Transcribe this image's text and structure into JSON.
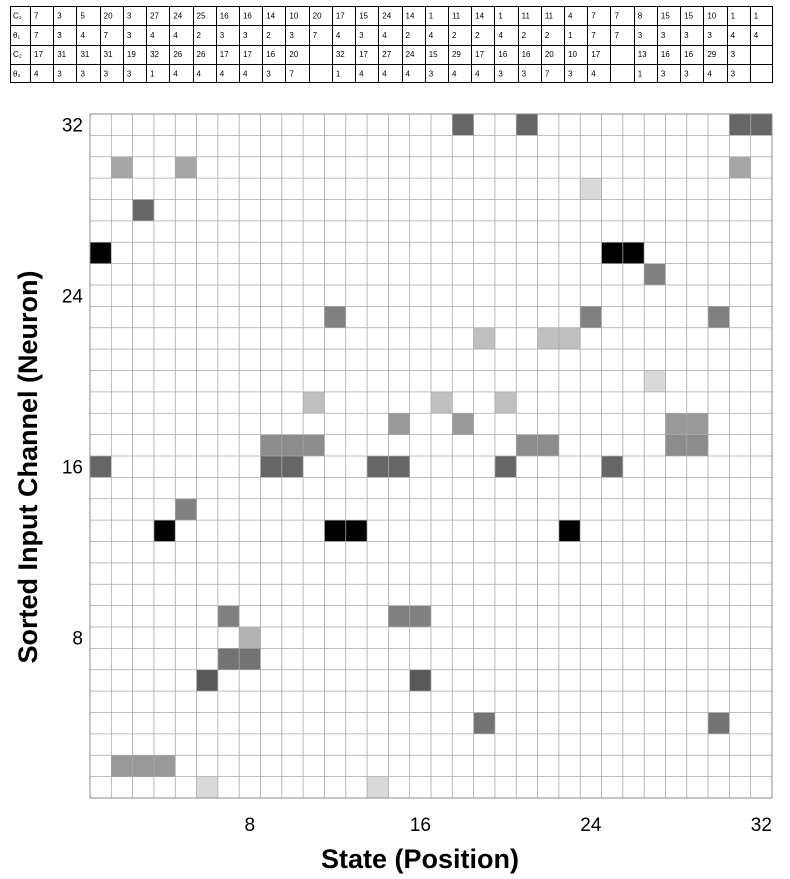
{
  "parameter_table": {
    "rows": [
      {
        "label": "C₁",
        "values": [
          "7",
          "3",
          "5",
          "20",
          "3",
          "27",
          "24",
          "25",
          "16",
          "16",
          "14",
          "10",
          "20",
          "17",
          "15",
          "24",
          "14",
          "1",
          "11",
          "14",
          "1",
          "11",
          "11",
          "4",
          "7",
          "7",
          "8",
          "15",
          "15",
          "10",
          "1",
          "1"
        ]
      },
      {
        "label": "θ₁",
        "values": [
          "7",
          "3",
          "4",
          "7",
          "3",
          "4",
          "4",
          "2",
          "3",
          "3",
          "2",
          "3",
          "7",
          "4",
          "3",
          "4",
          "2",
          "4",
          "2",
          "2",
          "4",
          "2",
          "2",
          "1",
          "7",
          "7",
          "3",
          "3",
          "3",
          "3",
          "4",
          "4"
        ]
      },
      {
        "label": "C₂",
        "values": [
          "17",
          "31",
          "31",
          "31",
          "19",
          "32",
          "26",
          "26",
          "17",
          "17",
          "16",
          "20",
          "",
          "32",
          "17",
          "27",
          "24",
          "15",
          "29",
          "17",
          "16",
          "16",
          "20",
          "10",
          "17",
          "",
          "13",
          "16",
          "16",
          "29",
          "3",
          ""
        ]
      },
      {
        "label": "θ₂",
        "values": [
          "4",
          "3",
          "3",
          "3",
          "3",
          "1",
          "4",
          "4",
          "4",
          "4",
          "3",
          "7",
          "",
          "1",
          "4",
          "4",
          "4",
          "3",
          "4",
          "4",
          "3",
          "3",
          "7",
          "3",
          "4",
          "",
          "1",
          "3",
          "3",
          "4",
          "3",
          ""
        ]
      }
    ]
  },
  "chart_data": {
    "type": "heatmap",
    "xlabel": "State (Position)",
    "ylabel": "Sorted Input Channel (Neuron)",
    "xlim": [
      1,
      32
    ],
    "ylim": [
      1,
      32
    ],
    "xticks": [
      8,
      16,
      24,
      32
    ],
    "yticks": [
      8,
      16,
      24,
      32
    ],
    "grid": true,
    "value_range": [
      0,
      1
    ],
    "colors": {
      "low": "#ffffff",
      "high": "#000000",
      "grid": "#a8a8a8",
      "frame": "#8c8c8c"
    },
    "cells": [
      {
        "x": 18,
        "y": 32,
        "v": 0.6
      },
      {
        "x": 21,
        "y": 32,
        "v": 0.6
      },
      {
        "x": 31,
        "y": 32,
        "v": 0.6
      },
      {
        "x": 32,
        "y": 32,
        "v": 0.6
      },
      {
        "x": 2,
        "y": 30,
        "v": 0.35
      },
      {
        "x": 5,
        "y": 30,
        "v": 0.35
      },
      {
        "x": 31,
        "y": 30,
        "v": 0.35
      },
      {
        "x": 24,
        "y": 29,
        "v": 0.15
      },
      {
        "x": 3,
        "y": 28,
        "v": 0.6
      },
      {
        "x": 1,
        "y": 26,
        "v": 1.0
      },
      {
        "x": 25,
        "y": 26,
        "v": 1.0
      },
      {
        "x": 26,
        "y": 26,
        "v": 1.0
      },
      {
        "x": 27,
        "y": 25,
        "v": 0.5
      },
      {
        "x": 12,
        "y": 23,
        "v": 0.5
      },
      {
        "x": 24,
        "y": 23,
        "v": 0.5
      },
      {
        "x": 30,
        "y": 23,
        "v": 0.5
      },
      {
        "x": 19,
        "y": 22,
        "v": 0.25
      },
      {
        "x": 22,
        "y": 22,
        "v": 0.25
      },
      {
        "x": 23,
        "y": 22,
        "v": 0.25
      },
      {
        "x": 27,
        "y": 20,
        "v": 0.15
      },
      {
        "x": 11,
        "y": 19,
        "v": 0.25
      },
      {
        "x": 17,
        "y": 19,
        "v": 0.25
      },
      {
        "x": 20,
        "y": 19,
        "v": 0.25
      },
      {
        "x": 15,
        "y": 18,
        "v": 0.4
      },
      {
        "x": 18,
        "y": 18,
        "v": 0.4
      },
      {
        "x": 28,
        "y": 18,
        "v": 0.4
      },
      {
        "x": 29,
        "y": 18,
        "v": 0.4
      },
      {
        "x": 9,
        "y": 17,
        "v": 0.45
      },
      {
        "x": 10,
        "y": 17,
        "v": 0.45
      },
      {
        "x": 11,
        "y": 17,
        "v": 0.45
      },
      {
        "x": 21,
        "y": 17,
        "v": 0.45
      },
      {
        "x": 22,
        "y": 17,
        "v": 0.45
      },
      {
        "x": 28,
        "y": 17,
        "v": 0.45
      },
      {
        "x": 29,
        "y": 17,
        "v": 0.45
      },
      {
        "x": 1,
        "y": 16,
        "v": 0.6
      },
      {
        "x": 9,
        "y": 16,
        "v": 0.6
      },
      {
        "x": 10,
        "y": 16,
        "v": 0.6
      },
      {
        "x": 14,
        "y": 16,
        "v": 0.6
      },
      {
        "x": 15,
        "y": 16,
        "v": 0.6
      },
      {
        "x": 20,
        "y": 16,
        "v": 0.6
      },
      {
        "x": 25,
        "y": 16,
        "v": 0.6
      },
      {
        "x": 5,
        "y": 14,
        "v": 0.5
      },
      {
        "x": 4,
        "y": 13,
        "v": 1.0
      },
      {
        "x": 12,
        "y": 13,
        "v": 1.0
      },
      {
        "x": 13,
        "y": 13,
        "v": 1.0
      },
      {
        "x": 23,
        "y": 13,
        "v": 1.0
      },
      {
        "x": 7,
        "y": 9,
        "v": 0.5
      },
      {
        "x": 15,
        "y": 9,
        "v": 0.5
      },
      {
        "x": 16,
        "y": 9,
        "v": 0.5
      },
      {
        "x": 8,
        "y": 8,
        "v": 0.3
      },
      {
        "x": 7,
        "y": 7,
        "v": 0.55
      },
      {
        "x": 8,
        "y": 7,
        "v": 0.55
      },
      {
        "x": 6,
        "y": 6,
        "v": 0.65
      },
      {
        "x": 16,
        "y": 6,
        "v": 0.65
      },
      {
        "x": 19,
        "y": 4,
        "v": 0.55
      },
      {
        "x": 30,
        "y": 4,
        "v": 0.55
      },
      {
        "x": 2,
        "y": 2,
        "v": 0.4
      },
      {
        "x": 3,
        "y": 2,
        "v": 0.4
      },
      {
        "x": 4,
        "y": 2,
        "v": 0.4
      },
      {
        "x": 6,
        "y": 1,
        "v": 0.15
      },
      {
        "x": 14,
        "y": 1,
        "v": 0.15
      }
    ]
  }
}
